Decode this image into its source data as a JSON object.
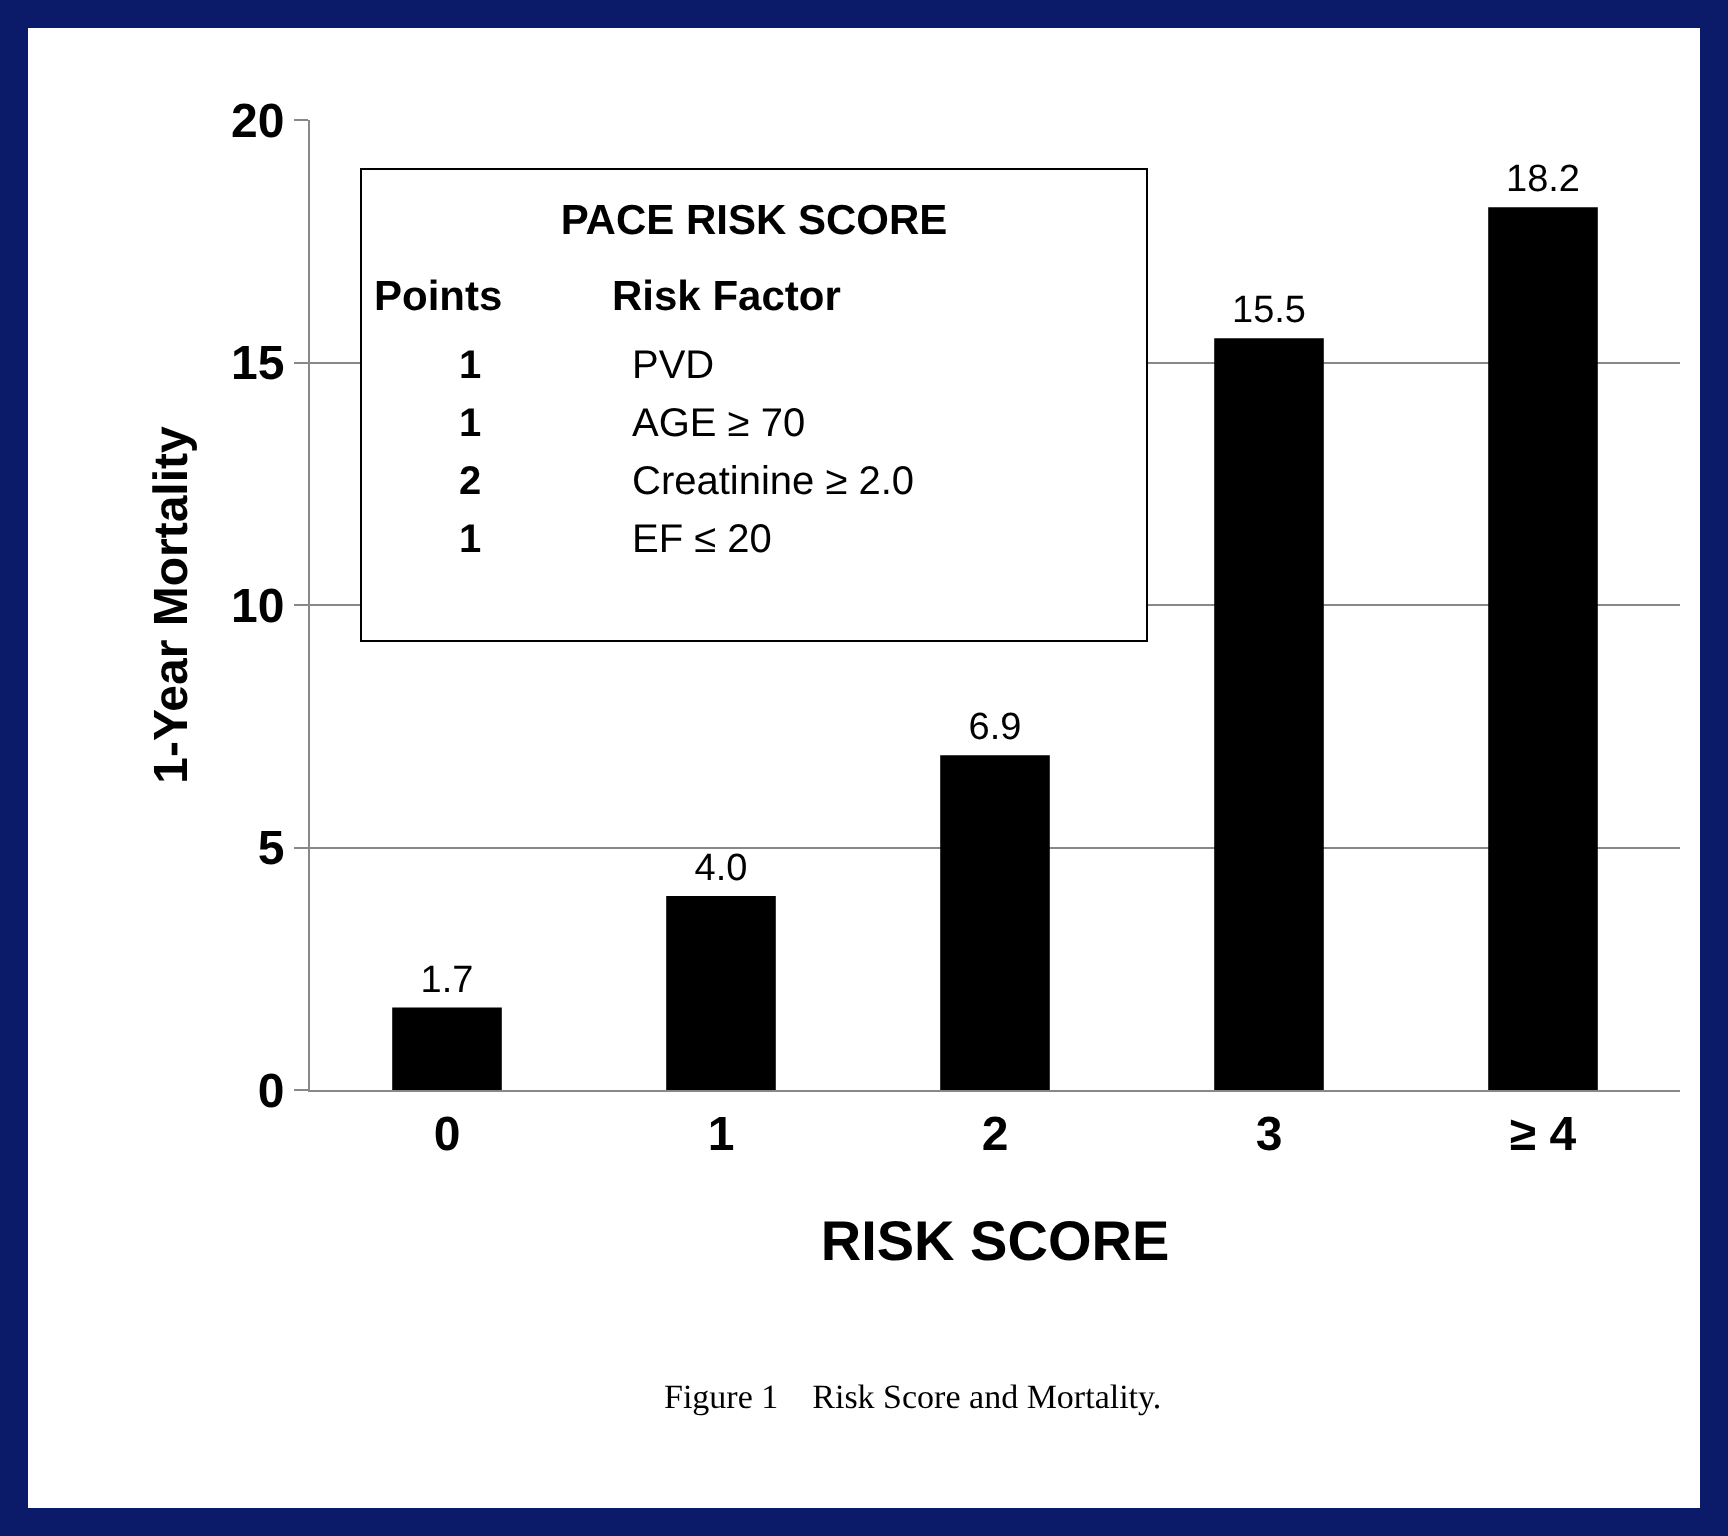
{
  "chart_data": {
    "type": "bar",
    "xlabel": "RISK SCORE",
    "ylabel": "1-Year Mortality",
    "categories": [
      "0",
      "1",
      "2",
      "3",
      "≥ 4"
    ],
    "values": [
      1.7,
      4.0,
      6.9,
      15.5,
      18.2
    ],
    "value_labels": [
      "1.7",
      "4.0",
      "6.9",
      "15.5",
      "18.2"
    ],
    "color": "#000000",
    "ylim": [
      0,
      20
    ],
    "yticks": [
      0,
      5,
      10,
      15,
      20
    ],
    "grid": "y",
    "legend": false,
    "annotations": [
      "PACE RISK SCORE",
      "Points",
      "Risk Factor",
      "1",
      "PVD",
      "1",
      "AGE ≥ 70",
      "2",
      "Creatinine ≥ 2.0",
      "1",
      "EF ≤ 20",
      "Figure 1    Risk Score and Mortality."
    ]
  }
}
